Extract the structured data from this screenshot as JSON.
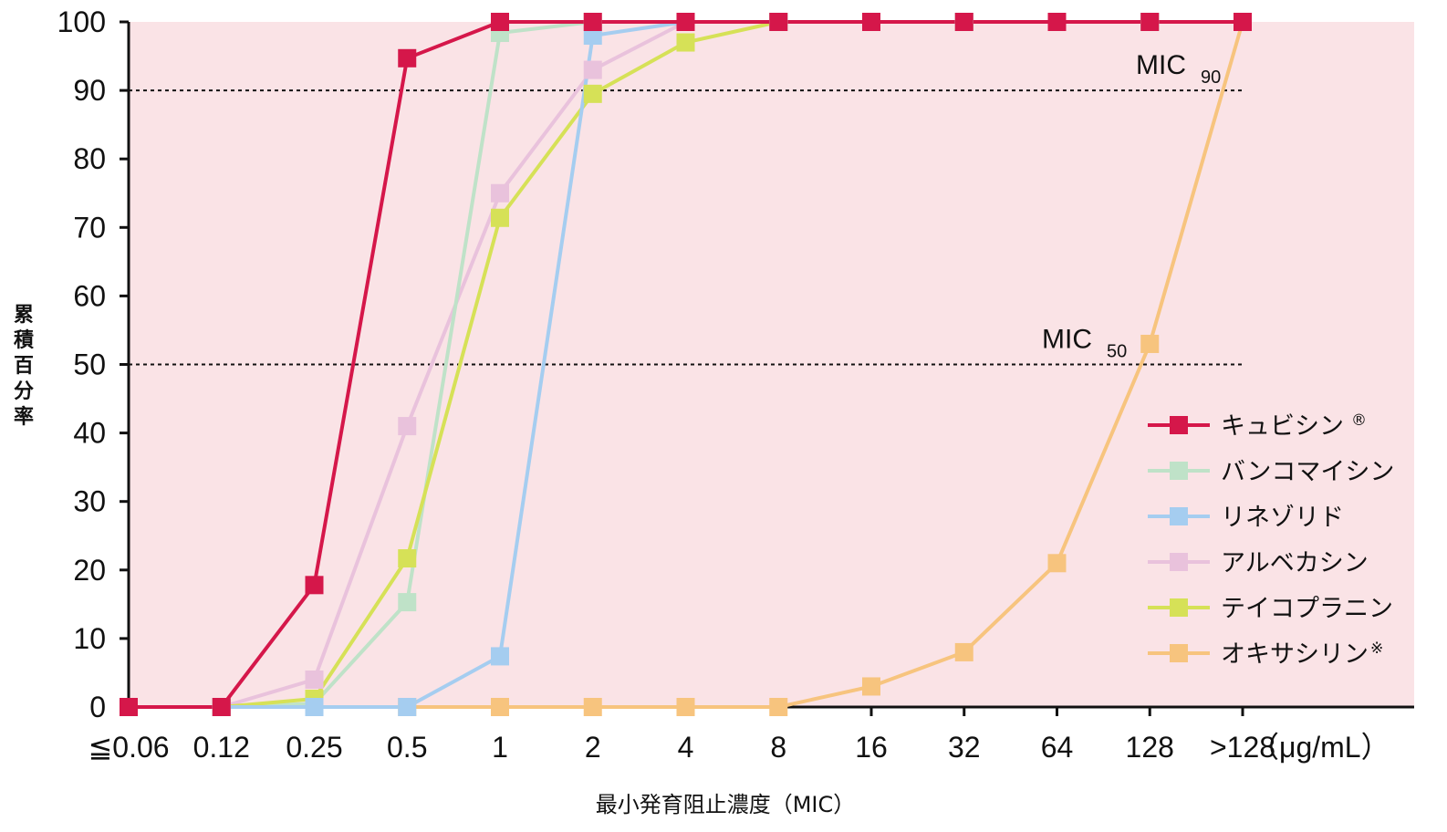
{
  "chart_data": {
    "type": "line",
    "title": "",
    "xlabel": "最小発育阻止濃度（MIC）",
    "ylabel": "累積百分率",
    "x_unit": "（μg/mL）",
    "categories": [
      "≦0.06",
      "0.12",
      "0.25",
      "0.5",
      "1",
      "2",
      "4",
      "8",
      "16",
      "32",
      "64",
      "128",
      ">128"
    ],
    "yticks": [
      "0",
      "10",
      "20",
      "30",
      "40",
      "50",
      "60",
      "70",
      "80",
      "90",
      "100"
    ],
    "ylim": [
      0,
      100
    ],
    "background_color": "#fae3e6",
    "reference_lines": [
      {
        "value": 90,
        "label": "MIC",
        "subscript": "90"
      },
      {
        "value": 50,
        "label": "MIC",
        "subscript": "50"
      }
    ],
    "legend_position": "right",
    "series": [
      {
        "name": "オキサシリン",
        "name_suffix": "※",
        "color": "#f7c47e",
        "values": [
          null,
          null,
          null,
          0,
          0,
          0,
          0,
          0,
          3,
          8,
          21,
          53,
          100
        ]
      },
      {
        "name": "アルベカシン",
        "name_suffix": "",
        "color": "#e9c2dc",
        "values": [
          0,
          0,
          4,
          41,
          75,
          93,
          100,
          100,
          100,
          100,
          100,
          100,
          100
        ]
      },
      {
        "name": "バンコマイシン",
        "name_suffix": "",
        "color": "#bfe2c8",
        "values": [
          0,
          0,
          0.5,
          15.3,
          98.4,
          100,
          100,
          100,
          100,
          100,
          100,
          100,
          100
        ]
      },
      {
        "name": "テイコプラニン",
        "name_suffix": "",
        "color": "#d6e157",
        "values": [
          0,
          0,
          1.2,
          21.7,
          71.4,
          89.5,
          97,
          100,
          100,
          100,
          100,
          100,
          100
        ]
      },
      {
        "name": "リネゾリド",
        "name_suffix": "",
        "color": "#a5cdf0",
        "values": [
          0,
          0,
          0,
          0,
          7.4,
          98,
          100,
          100,
          100,
          100,
          100,
          100,
          100
        ]
      },
      {
        "name": "キュビシン",
        "name_suffix": "®",
        "color": "#d5174a",
        "values": [
          0,
          0,
          17.8,
          94.7,
          100,
          100,
          100,
          100,
          100,
          100,
          100,
          100,
          100
        ]
      }
    ],
    "legend_order": [
      "キュビシン",
      "バンコマイシン",
      "リネゾリド",
      "アルベカシン",
      "テイコプラニン",
      "オキサシリン"
    ]
  }
}
